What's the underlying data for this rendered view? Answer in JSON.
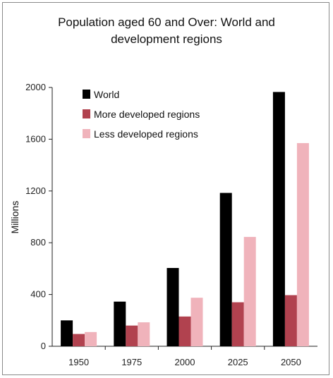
{
  "chart_data": {
    "type": "bar",
    "title": "Population aged 60 and Over: World and\ndevelopment regions",
    "ylabel": "Millions",
    "xlabel": "",
    "categories": [
      "1950",
      "1975",
      "2000",
      "2025",
      "2050"
    ],
    "ylim": [
      0,
      2000
    ],
    "yticks": [
      0,
      400,
      800,
      1200,
      1600,
      2000
    ],
    "grid": false,
    "legend_position": "top-left",
    "series": [
      {
        "name": "World",
        "color": "#000000",
        "values": [
          200,
          345,
          605,
          1185,
          1965
        ]
      },
      {
        "name": "More developed regions",
        "color": "#b1424f",
        "values": [
          95,
          160,
          230,
          340,
          395
        ]
      },
      {
        "name": "Less developed regions",
        "color": "#f0b3bb",
        "values": [
          110,
          185,
          375,
          845,
          1570
        ]
      }
    ]
  }
}
